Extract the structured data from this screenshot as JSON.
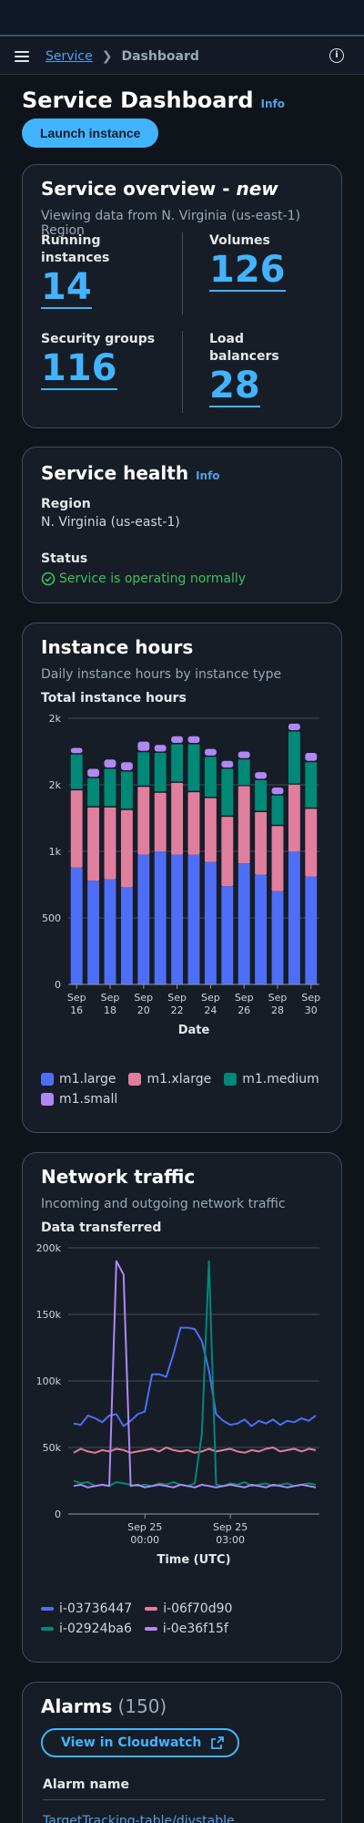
{
  "breadcrumb": {
    "service": "Service",
    "current": "Dashboard"
  },
  "header": {
    "title": "Service Dashboard",
    "info": "Info",
    "launch": "Launch instance"
  },
  "overview": {
    "title_main": "Service overview - ",
    "title_emph": "new",
    "subtitle": "Viewing data from N. Virginia (us-east-1) Region",
    "metrics": [
      {
        "label": "Running instances",
        "value": "14"
      },
      {
        "label": "Volumes",
        "value": "126"
      },
      {
        "label": "Security groups",
        "value": "116"
      },
      {
        "label": "Load balancers",
        "value": "28"
      }
    ]
  },
  "health": {
    "title": "Service health",
    "info": "Info",
    "region_label": "Region",
    "region_value": "N. Virginia (us-east-1)",
    "status_label": "Status",
    "status_value": "Service is operating normally"
  },
  "instance_hours": {
    "title": "Instance hours",
    "subtitle": "Daily instance hours by instance type",
    "chart_title": "Total instance hours"
  },
  "network": {
    "title": "Network traffic",
    "subtitle": "Incoming and outgoing network traffic",
    "chart_title": "Data transferred"
  },
  "alarms": {
    "title": "Alarms",
    "count": "(150)",
    "button": "View in Cloudwatch",
    "col_header": "Alarm name",
    "first_row": "TargetTracking-table/divstable"
  },
  "colors": {
    "m1.large": "#4f6ef7",
    "m1.xlarge": "#e07f9d",
    "m1.medium": "#018977",
    "m1.small": "#b088f5",
    "i-03736447": "#4f6ef7",
    "i-06f70d90": "#e07f9d",
    "i-02924ba6": "#018977",
    "i-0e36f15f": "#b088f5"
  },
  "chart_data": [
    {
      "type": "bar",
      "stacked": true,
      "title": "Total instance hours",
      "xlabel": "Date",
      "ylabel": "",
      "ylim": [
        0,
        2000
      ],
      "yticks": [
        "0",
        "500",
        "1k",
        "2k",
        "2k"
      ],
      "categories": [
        "Sep 16",
        "Sep 17",
        "Sep 18",
        "Sep 19",
        "Sep 20",
        "Sep 21",
        "Sep 22",
        "Sep 23",
        "Sep 24",
        "Sep 25",
        "Sep 26",
        "Sep 27",
        "Sep 28",
        "Sep 29",
        "Sep 30"
      ],
      "tick_labels": [
        "Sep 16",
        "Sep 18",
        "Sep 20",
        "Sep 22",
        "Sep 24",
        "Sep 26",
        "Sep 28",
        "Sep 30"
      ],
      "series": [
        {
          "name": "m1.large",
          "values": [
            878,
            780,
            790,
            730,
            975,
            1000,
            975,
            975,
            920,
            740,
            910,
            825,
            700,
            1000,
            810
          ]
        },
        {
          "name": "m1.xlarge",
          "values": [
            590,
            560,
            550,
            590,
            520,
            450,
            550,
            480,
            490,
            530,
            590,
            480,
            500,
            510,
            520
          ]
        },
        {
          "name": "m1.medium",
          "values": [
            270,
            220,
            290,
            290,
            260,
            300,
            290,
            360,
            310,
            360,
            200,
            240,
            230,
            400,
            350
          ]
        },
        {
          "name": "m1.small",
          "values": [
            50,
            70,
            70,
            70,
            80,
            60,
            60,
            60,
            60,
            60,
            60,
            60,
            60,
            60,
            70
          ]
        }
      ],
      "legend": "bottom"
    },
    {
      "type": "line",
      "title": "Data transferred",
      "xlabel": "Time (UTC)",
      "ylabel": "",
      "ylim": [
        0,
        200000
      ],
      "yticks": [
        "0",
        "50k",
        "100k",
        "150k",
        "200k"
      ],
      "tick_labels": [
        [
          "Sep 25",
          "00:00"
        ],
        [
          "Sep 25",
          "03:00"
        ]
      ],
      "x": [
        "Sep 24 21:30",
        "Sep 24 21:45",
        "Sep 24 22:00",
        "Sep 24 22:15",
        "Sep 24 22:30",
        "Sep 24 22:45",
        "Sep 24 23:00",
        "Sep 24 23:15",
        "Sep 24 23:30",
        "Sep 24 23:45",
        "Sep 25 00:00",
        "Sep 25 00:15",
        "Sep 25 00:30",
        "Sep 25 00:45",
        "Sep 25 01:00",
        "Sep 25 01:15",
        "Sep 25 01:30",
        "Sep 25 01:45",
        "Sep 25 02:00",
        "Sep 25 02:15",
        "Sep 25 02:30",
        "Sep 25 02:45",
        "Sep 25 03:00",
        "Sep 25 03:15",
        "Sep 25 03:30",
        "Sep 25 03:45",
        "Sep 25 04:00",
        "Sep 25 04:15",
        "Sep 25 04:30",
        "Sep 25 04:45",
        "Sep 25 05:00",
        "Sep 25 05:15",
        "Sep 25 05:30",
        "Sep 25 05:45",
        "Sep 25 06:00"
      ],
      "series": [
        {
          "name": "i-03736447",
          "values": [
            68000,
            67000,
            74000,
            72000,
            69000,
            74000,
            75000,
            66000,
            70000,
            75000,
            77000,
            105000,
            105000,
            103000,
            120000,
            140000,
            140000,
            139000,
            130000,
            108000,
            75000,
            70000,
            67000,
            68000,
            71000,
            66000,
            70000,
            68000,
            71000,
            67000,
            70000,
            69000,
            72000,
            70000,
            74000
          ]
        },
        {
          "name": "i-06f70d90",
          "values": [
            46000,
            49000,
            47000,
            46000,
            48000,
            47000,
            49000,
            48000,
            46000,
            47000,
            48000,
            49000,
            47000,
            50000,
            48000,
            47000,
            48000,
            46000,
            47000,
            49000,
            47000,
            48000,
            49000,
            47000,
            46000,
            48000,
            47000,
            49000,
            50000,
            47000,
            48000,
            49000,
            47000,
            49000,
            48000
          ]
        },
        {
          "name": "i-02924ba6",
          "values": [
            25000,
            23000,
            24000,
            21000,
            22000,
            21000,
            24000,
            23000,
            22000,
            21000,
            22000,
            21000,
            23000,
            22000,
            24000,
            22000,
            21000,
            23000,
            60000,
            190000,
            22000,
            21000,
            23000,
            22000,
            24000,
            21000,
            22000,
            23000,
            21000,
            22000,
            23000,
            21000,
            22000,
            23000,
            22000
          ]
        },
        {
          "name": "i-0e36f15f",
          "values": [
            21000,
            22000,
            20000,
            21000,
            22000,
            21000,
            190000,
            180000,
            21000,
            22000,
            20000,
            21000,
            22000,
            21000,
            20000,
            22000,
            21000,
            20000,
            22000,
            21000,
            20000,
            21000,
            22000,
            21000,
            20000,
            22000,
            21000,
            20000,
            22000,
            21000,
            20000,
            21000,
            22000,
            21000,
            20000
          ]
        }
      ],
      "legend": "bottom"
    }
  ]
}
